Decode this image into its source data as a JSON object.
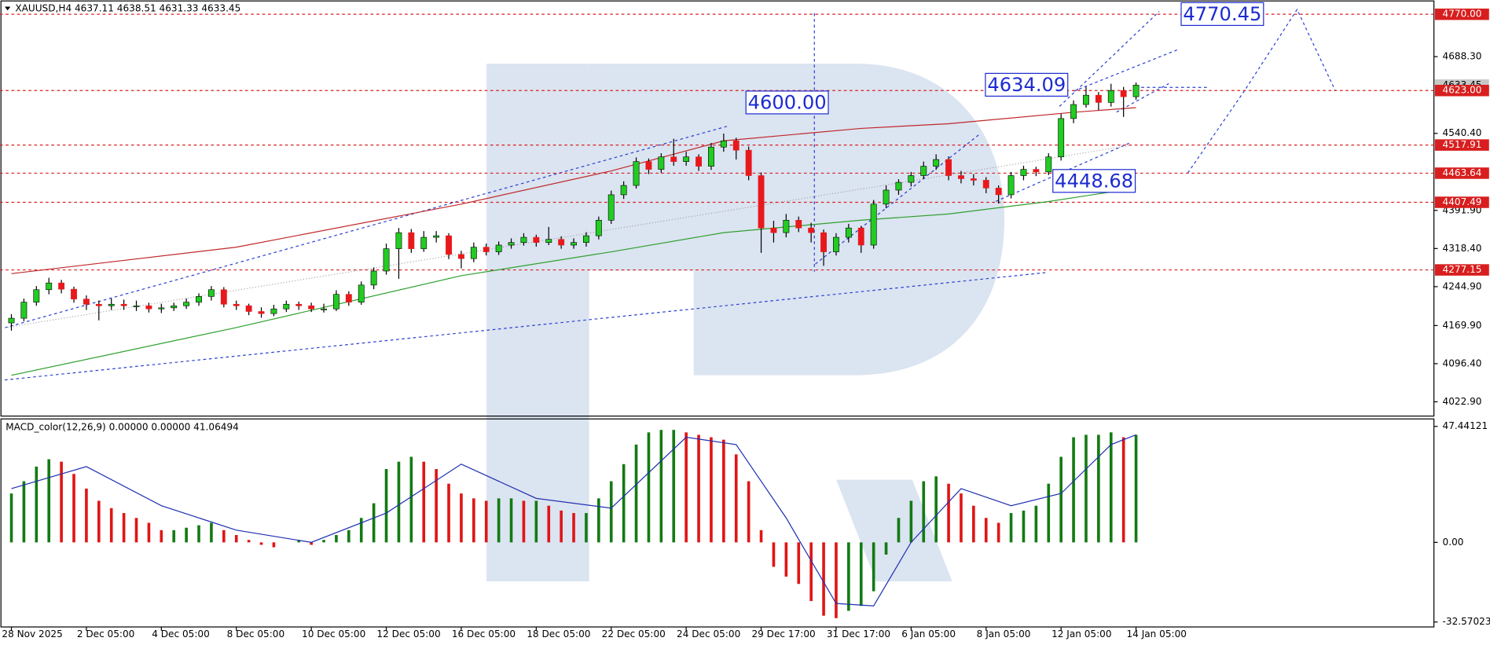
{
  "chart_data": {
    "type": "candlestick",
    "title": "XAUUSD,H4  4637.11 4638.51 4631.33 4633.45",
    "categories": [
      "28 Nov 2025",
      null,
      null,
      null,
      null,
      null,
      "2 Dec 05:00",
      null,
      null,
      null,
      null,
      null,
      "4 Dec 05:00",
      null,
      null,
      null,
      null,
      null,
      "8 Dec 05:00",
      null,
      null,
      null,
      null,
      null,
      "10 Dec 05:00",
      null,
      null,
      null,
      null,
      null,
      "12 Dec 05:00",
      null,
      null,
      null,
      null,
      null,
      "16 Dec 05:00",
      null,
      null,
      null,
      null,
      null,
      "18 Dec 05:00",
      null,
      null,
      null,
      null,
      null,
      "22 Dec 05:00",
      null,
      null,
      null,
      null,
      null,
      "24 Dec 05:00",
      null,
      null,
      null,
      null,
      null,
      "29 Dec 17:00",
      null,
      null,
      null,
      null,
      null,
      "31 Dec 17:00",
      null,
      null,
      null,
      null,
      null,
      "6 Jan 05:00",
      null,
      null,
      null,
      null,
      null,
      "8 Jan 05:00",
      null,
      null,
      null,
      null,
      null,
      "12 Jan 05:00",
      null,
      null,
      null,
      null,
      null,
      "14 Jan 05:00"
    ],
    "candles": [
      [
        4175,
        4192,
        4160,
        4184
      ],
      [
        4184,
        4222,
        4178,
        4215
      ],
      [
        4215,
        4246,
        4208,
        4239
      ],
      [
        4239,
        4262,
        4230,
        4252
      ],
      [
        4252,
        4258,
        4232,
        4240
      ],
      [
        4240,
        4245,
        4214,
        4221
      ],
      [
        4221,
        4228,
        4200,
        4211
      ],
      [
        4211,
        4218,
        4180,
        4208
      ],
      [
        4208,
        4222,
        4200,
        4211
      ],
      [
        4211,
        4220,
        4200,
        4208
      ],
      [
        4208,
        4218,
        4198,
        4208
      ],
      [
        4208,
        4214,
        4195,
        4202
      ],
      [
        4202,
        4212,
        4194,
        4204
      ],
      [
        4204,
        4214,
        4198,
        4208
      ],
      [
        4208,
        4222,
        4202,
        4215
      ],
      [
        4215,
        4232,
        4208,
        4226
      ],
      [
        4226,
        4246,
        4218,
        4239
      ],
      [
        4239,
        4244,
        4205,
        4211
      ],
      [
        4211,
        4218,
        4200,
        4208
      ],
      [
        4208,
        4212,
        4190,
        4197
      ],
      [
        4197,
        4205,
        4185,
        4193
      ],
      [
        4193,
        4210,
        4188,
        4202
      ],
      [
        4202,
        4218,
        4196,
        4211
      ],
      [
        4211,
        4216,
        4200,
        4208
      ],
      [
        4208,
        4214,
        4196,
        4202
      ],
      [
        4202,
        4212,
        4195,
        4202
      ],
      [
        4202,
        4238,
        4198,
        4230
      ],
      [
        4230,
        4236,
        4208,
        4215
      ],
      [
        4215,
        4255,
        4210,
        4248
      ],
      [
        4248,
        4282,
        4240,
        4275
      ],
      [
        4275,
        4328,
        4268,
        4318
      ],
      [
        4318,
        4358,
        4260,
        4349
      ],
      [
        4349,
        4356,
        4310,
        4318
      ],
      [
        4318,
        4352,
        4312,
        4340
      ],
      [
        4340,
        4352,
        4330,
        4343
      ],
      [
        4343,
        4348,
        4298,
        4307
      ],
      [
        4307,
        4314,
        4280,
        4299
      ],
      [
        4299,
        4330,
        4292,
        4321
      ],
      [
        4321,
        4328,
        4305,
        4312
      ],
      [
        4312,
        4332,
        4306,
        4325
      ],
      [
        4325,
        4338,
        4318,
        4330
      ],
      [
        4330,
        4348,
        4324,
        4340
      ],
      [
        4340,
        4345,
        4322,
        4330
      ],
      [
        4330,
        4360,
        4325,
        4336
      ],
      [
        4336,
        4342,
        4318,
        4325
      ],
      [
        4325,
        4338,
        4318,
        4330
      ],
      [
        4330,
        4350,
        4322,
        4343
      ],
      [
        4343,
        4380,
        4336,
        4373
      ],
      [
        4373,
        4430,
        4366,
        4422
      ],
      [
        4422,
        4448,
        4414,
        4440
      ],
      [
        4440,
        4494,
        4434,
        4486
      ],
      [
        4486,
        4492,
        4462,
        4471
      ],
      [
        4471,
        4502,
        4464,
        4495
      ],
      [
        4495,
        4530,
        4478,
        4486
      ],
      [
        4486,
        4505,
        4478,
        4495
      ],
      [
        4495,
        4500,
        4468,
        4477
      ],
      [
        4477,
        4522,
        4470,
        4514
      ],
      [
        4514,
        4540,
        4505,
        4526
      ],
      [
        4526,
        4532,
        4490,
        4508
      ],
      [
        4508,
        4515,
        4450,
        4459
      ],
      [
        4459,
        4465,
        4310,
        4358
      ],
      [
        4358,
        4372,
        4330,
        4349
      ],
      [
        4349,
        4385,
        4340,
        4373
      ],
      [
        4373,
        4380,
        4350,
        4358
      ],
      [
        4358,
        4368,
        4330,
        4349
      ],
      [
        4349,
        4355,
        4285,
        4312
      ],
      [
        4312,
        4348,
        4305,
        4340
      ],
      [
        4340,
        4366,
        4330,
        4358
      ],
      [
        4358,
        4362,
        4310,
        4325
      ],
      [
        4325,
        4412,
        4318,
        4404
      ],
      [
        4404,
        4440,
        4396,
        4431
      ],
      [
        4431,
        4452,
        4422,
        4446
      ],
      [
        4446,
        4466,
        4438,
        4459
      ],
      [
        4459,
        4486,
        4452,
        4477
      ],
      [
        4477,
        4500,
        4470,
        4490
      ],
      [
        4490,
        4496,
        4450,
        4459
      ],
      [
        4459,
        4468,
        4444,
        4453
      ],
      [
        4453,
        4462,
        4440,
        4450
      ],
      [
        4450,
        4456,
        4425,
        4435
      ],
      [
        4435,
        4440,
        4405,
        4422
      ],
      [
        4422,
        4466,
        4415,
        4459
      ],
      [
        4459,
        4478,
        4450,
        4471
      ],
      [
        4471,
        4476,
        4458,
        4466
      ],
      [
        4466,
        4502,
        4460,
        4495
      ],
      [
        4495,
        4578,
        4488,
        4569
      ],
      [
        4569,
        4604,
        4560,
        4596
      ],
      [
        4596,
        4630,
        4590,
        4614
      ],
      [
        4614,
        4620,
        4585,
        4600
      ],
      [
        4600,
        4636,
        4592,
        4623
      ],
      [
        4623,
        4630,
        4572,
        4611
      ],
      [
        4611,
        4638.51,
        4605,
        4633.45
      ]
    ],
    "up_color": "#22cc22",
    "down_color": "#e8191c",
    "ylim": [
      3995.4,
      4797.5
    ],
    "yticks": [
      {
        "value": 4688.3,
        "label": "4688.30"
      },
      {
        "value": 4540.4,
        "label": "4540.40"
      },
      {
        "value": 4391.9,
        "label": "4391.90"
      },
      {
        "value": 4318.4,
        "label": "4318.40"
      },
      {
        "value": 4244.9,
        "label": "4244.90"
      },
      {
        "value": 4169.9,
        "label": "4169.90"
      },
      {
        "value": 4096.4,
        "label": "4096.40"
      },
      {
        "value": 4022.9,
        "label": "4022.90"
      }
    ],
    "current_price": {
      "value": 4633.45,
      "label": "4633.45"
    },
    "levels": [
      {
        "value": 4770,
        "label": "4770.00"
      },
      {
        "value": 4623,
        "label": "4623.00"
      },
      {
        "value": 4517.91,
        "label": "4517.91"
      },
      {
        "value": 4463.64,
        "label": "4463.64"
      },
      {
        "value": 4407.49,
        "label": "4407.49"
      },
      {
        "value": 4277.15,
        "label": "4277.15"
      }
    ],
    "level_color": "#d81e1e",
    "moving_averages": [
      {
        "color": "#c0282a",
        "x": [
          0,
          18,
          36,
          48,
          57,
          68,
          75,
          85,
          90
        ],
        "values": [
          4270,
          4321,
          4404,
          4468,
          4526,
          4550,
          4559,
          4581,
          4590
        ]
      },
      {
        "color": "#2ea02e",
        "x": [
          0,
          18,
          36,
          48,
          57,
          68,
          75,
          83,
          90
        ],
        "values": [
          4074,
          4166,
          4266,
          4312,
          4349,
          4373,
          4385,
          4409,
          4435
        ]
      }
    ],
    "annotations": [
      {
        "value": 4770.45,
        "label": "4770.45"
      },
      {
        "value": 4634.09,
        "label": "4634.09"
      },
      {
        "value": 4600,
        "label": "4600.00"
      },
      {
        "value": 4448.68,
        "label": "4448.68"
      }
    ],
    "annotation_color": "#1c2bd0",
    "macd": {
      "type": "bar",
      "title": "MACD_color(12,26,9) 0.00000 0.00000 41.06494",
      "values": [
        20,
        25,
        31,
        34,
        33,
        28,
        22,
        17,
        14,
        12,
        10,
        8,
        5,
        5,
        6,
        7,
        8,
        5,
        3,
        1,
        -1,
        -2,
        0,
        1,
        -1,
        1,
        3,
        5,
        10,
        16,
        30,
        33,
        35,
        33,
        30,
        24,
        20,
        18,
        17,
        18,
        18,
        17,
        17,
        15,
        13,
        12,
        12,
        18,
        25,
        32,
        40,
        45,
        46,
        46,
        45,
        44,
        43,
        42,
        36,
        25,
        5,
        -10,
        -14,
        -17,
        -24,
        -30,
        -31,
        -28,
        -26,
        -20,
        -5,
        10,
        17,
        25,
        27,
        24,
        20,
        15,
        10,
        8,
        12,
        13,
        15,
        24,
        35,
        43,
        44,
        44,
        45,
        43,
        44
      ],
      "up_color": "#137a13",
      "down_color": "#e01515",
      "ylim": [
        -34.6,
        50.5
      ],
      "yticks": [
        47.44121,
        {
          "value": 0,
          "label": "0.00"
        },
        -32.57023
      ],
      "signal": {
        "color": "#1f2fb0",
        "x": [
          0,
          6,
          12,
          18,
          24,
          30,
          36,
          42,
          48,
          54,
          58,
          62,
          66,
          69,
          72,
          76,
          80,
          84,
          88,
          90
        ],
        "values": [
          22,
          31,
          15,
          5,
          0,
          12,
          32,
          18,
          14,
          43,
          40,
          10,
          -25,
          -26,
          0,
          22,
          15,
          20,
          40,
          44
        ]
      }
    }
  }
}
